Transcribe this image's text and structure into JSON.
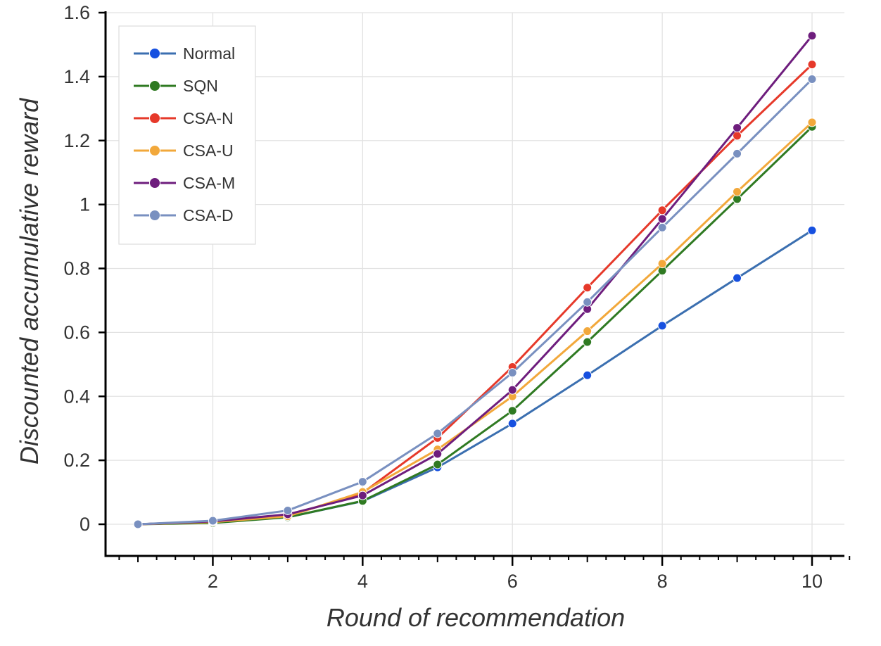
{
  "chart_data": {
    "type": "line",
    "title": "",
    "xlabel": "Round of recommendation",
    "ylabel": "Discounted accumulative reward",
    "x": [
      1,
      2,
      3,
      4,
      5,
      6,
      7,
      8,
      9,
      10
    ],
    "xlim": [
      0.5,
      10.5
    ],
    "ylim": [
      -0.1,
      1.6
    ],
    "xticks": [
      2,
      4,
      6,
      8,
      10
    ],
    "xtick_labels": [
      "2",
      "4",
      "6",
      "8",
      "10"
    ],
    "yticks": [
      0,
      0.2,
      0.4,
      0.6,
      0.8,
      1,
      1.2,
      1.4,
      1.6
    ],
    "ytick_labels": [
      "0",
      "0.2",
      "0.4",
      "0.6",
      "0.8",
      "1",
      "1.2",
      "1.4",
      "1.6"
    ],
    "grid": true,
    "legend_position": "top-left",
    "series": [
      {
        "name": "Normal",
        "color": "#3b6fb0",
        "marker_color": "#1650e0",
        "values": [
          0.0,
          0.008,
          0.022,
          0.072,
          0.178,
          0.315,
          0.466,
          0.621,
          0.77,
          0.919
        ]
      },
      {
        "name": "SQN",
        "color": "#2f7a22",
        "marker_color": "#2f7a22",
        "values": [
          0.0,
          0.004,
          0.022,
          0.073,
          0.187,
          0.355,
          0.57,
          0.793,
          1.017,
          1.243
        ]
      },
      {
        "name": "CSA-N",
        "color": "#e6392a",
        "marker_color": "#e6392a",
        "values": [
          0.0,
          0.008,
          0.026,
          0.098,
          0.27,
          0.492,
          0.74,
          0.982,
          1.215,
          1.438
        ]
      },
      {
        "name": "CSA-U",
        "color": "#f2a83b",
        "marker_color": "#f2a83b",
        "values": [
          0.0,
          0.007,
          0.025,
          0.101,
          0.234,
          0.4,
          0.604,
          0.815,
          1.04,
          1.257
        ]
      },
      {
        "name": "CSA-M",
        "color": "#6e1d7d",
        "marker_color": "#6e1d7d",
        "values": [
          0.0,
          0.009,
          0.031,
          0.09,
          0.22,
          0.42,
          0.673,
          0.955,
          1.24,
          1.528
        ]
      },
      {
        "name": "CSA-D",
        "color": "#7990c0",
        "marker_color": "#7990c0",
        "values": [
          0.0,
          0.011,
          0.043,
          0.133,
          0.284,
          0.474,
          0.695,
          0.928,
          1.159,
          1.392
        ]
      }
    ]
  }
}
